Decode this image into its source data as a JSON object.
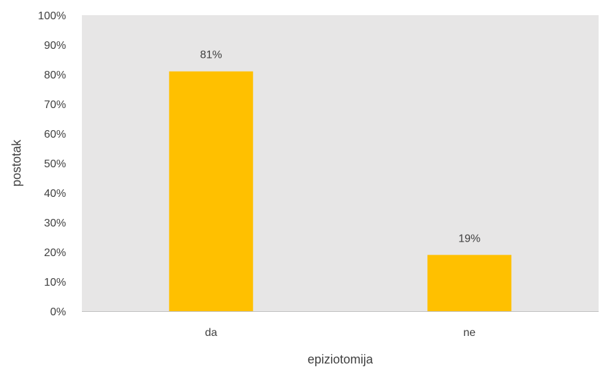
{
  "chart_data": {
    "type": "bar",
    "categories": [
      "da",
      "ne"
    ],
    "values": [
      81,
      19
    ],
    "data_labels": [
      "81%",
      "19%"
    ],
    "title": "",
    "xlabel": "epiziotomija",
    "ylabel": "postotak",
    "ylim": [
      0,
      100
    ],
    "y_ticks": [
      "0%",
      "10%",
      "20%",
      "30%",
      "40%",
      "50%",
      "60%",
      "70%",
      "80%",
      "90%",
      "100%"
    ],
    "grid": false,
    "legend": "none",
    "colors": {
      "bar": "#FFC000",
      "plot_background": "#E7E6E6",
      "axis_line": "#BFBFBF",
      "text": "#404040"
    }
  }
}
